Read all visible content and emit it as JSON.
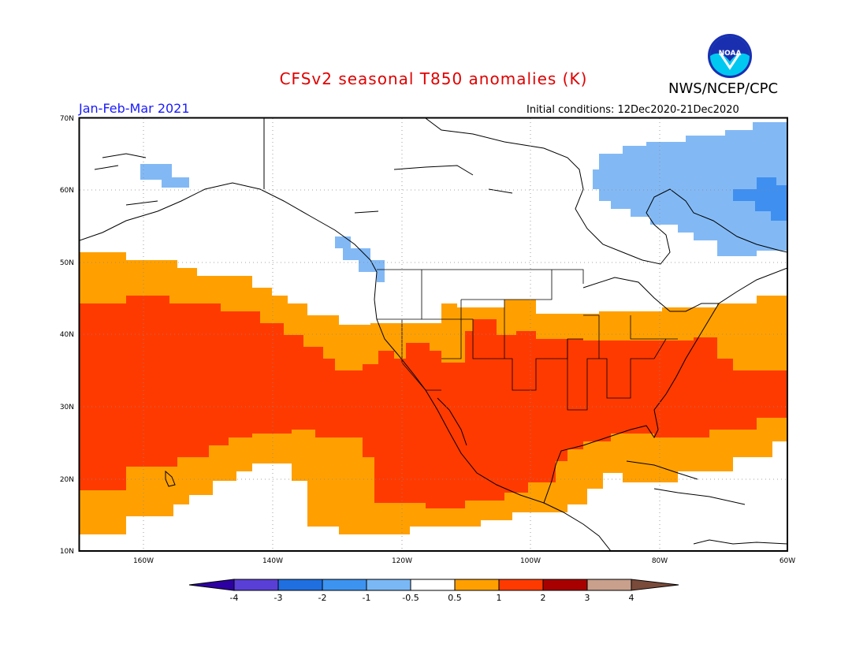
{
  "header": {
    "title": "CFSv2 seasonal T850 anomalies (K)",
    "org": "NWS/NCEP/CPC",
    "period": "Jan-Feb-Mar 2021",
    "initial_conditions": "Initial conditions: 12Dec2020-21Dec2020",
    "logo_text": "NOAA"
  },
  "axes": {
    "lat_labels": [
      "70N",
      "60N",
      "50N",
      "40N",
      "30N",
      "20N",
      "10N"
    ],
    "lon_labels": [
      "160W",
      "140W",
      "120W",
      "100W",
      "80W",
      "60W"
    ]
  },
  "colorbar": {
    "labels": [
      "-4",
      "-3",
      "-2",
      "-1",
      "-0.5",
      "0.5",
      "1",
      "2",
      "3",
      "4"
    ],
    "colors": [
      "#2d00a3",
      "#5a3fd6",
      "#1f6fe0",
      "#3d93f0",
      "#7ab8f5",
      "#ffffff",
      "#ffa000",
      "#ff3a00",
      "#a80000",
      "#c8a08c",
      "#7a4a3a"
    ]
  },
  "legend_colors": {
    "neg_0_5_to_1": "#82b9f5",
    "neg_1_to_2": "#3f8ff0",
    "pos_0_5_to_1": "#ffa000",
    "pos_1_to_2": "#ff3a00"
  }
}
